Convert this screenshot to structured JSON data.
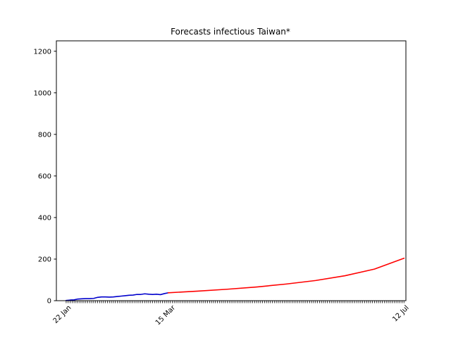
{
  "chart_data": {
    "type": "line",
    "title": "Forecasts infectious Taiwan*",
    "xlabel": "",
    "ylabel": "",
    "x_ticks": [
      {
        "date": "2020-01-22",
        "label": "22 Jan"
      },
      {
        "date": "2020-03-15",
        "label": "15 Mar"
      },
      {
        "date": "2020-07-12",
        "label": "12 Jul"
      }
    ],
    "xlim": [
      "2020-01-17",
      "2020-07-13"
    ],
    "ylim": [
      0,
      1250
    ],
    "y_ticks": [
      0,
      200,
      400,
      600,
      800,
      1000,
      1200
    ],
    "minor_ticks": "daily",
    "grid": false,
    "series": [
      {
        "color": "#0000cc",
        "points": [
          [
            "2020-01-22",
            1
          ],
          [
            "2020-01-24",
            3
          ],
          [
            "2020-01-26",
            4
          ],
          [
            "2020-01-28",
            8
          ],
          [
            "2020-01-30",
            9
          ],
          [
            "2020-02-01",
            10
          ],
          [
            "2020-02-03",
            10
          ],
          [
            "2020-02-05",
            11
          ],
          [
            "2020-02-07",
            16
          ],
          [
            "2020-02-09",
            18
          ],
          [
            "2020-02-11",
            18
          ],
          [
            "2020-02-13",
            17
          ],
          [
            "2020-02-15",
            18
          ],
          [
            "2020-02-17",
            20
          ],
          [
            "2020-02-19",
            22
          ],
          [
            "2020-02-21",
            24
          ],
          [
            "2020-02-23",
            26
          ],
          [
            "2020-02-25",
            27
          ],
          [
            "2020-02-27",
            30
          ],
          [
            "2020-02-29",
            30
          ],
          [
            "2020-03-02",
            33
          ],
          [
            "2020-03-04",
            31
          ],
          [
            "2020-03-06",
            30
          ],
          [
            "2020-03-08",
            31
          ],
          [
            "2020-03-10",
            29
          ],
          [
            "2020-03-12",
            34
          ],
          [
            "2020-03-14",
            38
          ]
        ]
      },
      {
        "color": "#ff0000",
        "points": [
          [
            "2020-03-14",
            38
          ],
          [
            "2020-03-29",
            46
          ],
          [
            "2020-04-13",
            55
          ],
          [
            "2020-04-28",
            66
          ],
          [
            "2020-05-13",
            80
          ],
          [
            "2020-05-28",
            97
          ],
          [
            "2020-06-12",
            120
          ],
          [
            "2020-06-27",
            152
          ],
          [
            "2020-07-12",
            204
          ]
        ]
      }
    ]
  }
}
